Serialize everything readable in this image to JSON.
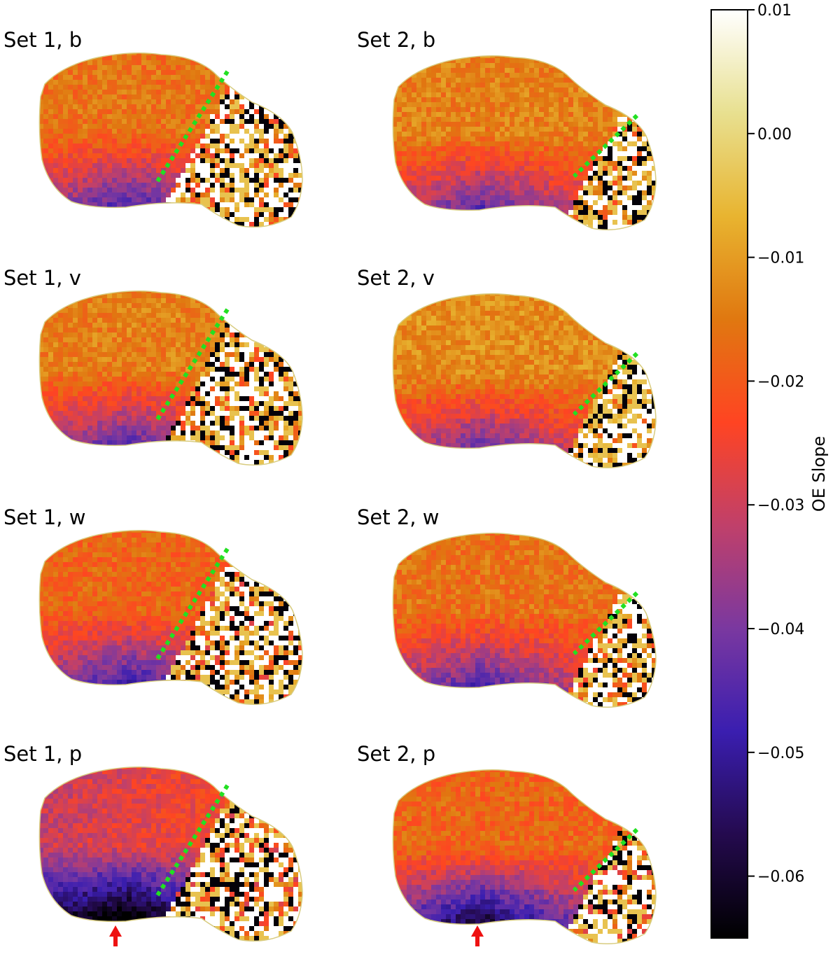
{
  "chart_data": {
    "type": "heatmap",
    "panels": [
      {
        "label": "Set 1, b",
        "set": 1,
        "band": "b",
        "arrow": false
      },
      {
        "label": "Set 2, b",
        "set": 2,
        "band": "b",
        "arrow": false
      },
      {
        "label": "Set 1, v",
        "set": 1,
        "band": "v",
        "arrow": false
      },
      {
        "label": "Set 2, v",
        "set": 2,
        "band": "v",
        "arrow": false
      },
      {
        "label": "Set 1, w",
        "set": 1,
        "band": "w",
        "arrow": false
      },
      {
        "label": "Set 2, w",
        "set": 2,
        "band": "w",
        "arrow": false
      },
      {
        "label": "Set 1, p",
        "set": 1,
        "band": "p",
        "arrow": true
      },
      {
        "label": "Set 2, p",
        "set": 2,
        "band": "p",
        "arrow": true
      }
    ],
    "colorbar": {
      "label": "OE Slope",
      "vmin": -0.065,
      "vmax": 0.01,
      "ticks": [
        0.01,
        0.0,
        -0.01,
        -0.02,
        -0.03,
        -0.04,
        -0.05,
        -0.06
      ],
      "tick_labels": [
        "0.01",
        "0.00",
        "−0.01",
        "−0.02",
        "−0.03",
        "−0.04",
        "−0.05",
        "−0.06"
      ],
      "colormap": [
        "#000000",
        "#240a4e",
        "#3a1eb0",
        "#7a38a0",
        "#c0406a",
        "#ff4422",
        "#e07810",
        "#e8b430",
        "#e8e090",
        "#ffffff"
      ]
    },
    "annotations": {
      "dotted_line_color": "#22e022",
      "arrow_color": "#ee1111"
    }
  }
}
